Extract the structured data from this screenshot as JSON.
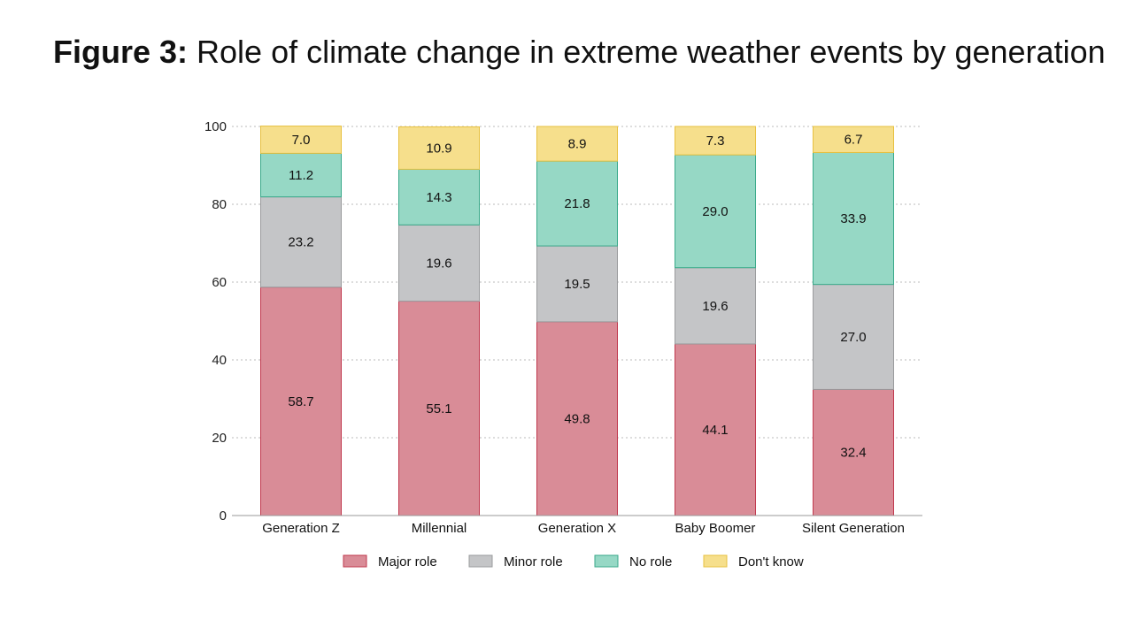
{
  "figure": {
    "label": "Figure 3:",
    "title": "Role of climate change in extreme weather events by generation"
  },
  "chart_data": {
    "type": "bar",
    "stacked": true,
    "title": "Role of climate change in extreme weather events by generation",
    "categories": [
      "Generation Z",
      "Millennial",
      "Generation X",
      "Baby Boomer",
      "Silent Generation"
    ],
    "series": [
      {
        "name": "Major role",
        "color": "#d98c97",
        "stroke": "#c0394e",
        "values": [
          58.7,
          55.1,
          49.8,
          44.1,
          32.4
        ]
      },
      {
        "name": "Minor role",
        "color": "#c4c5c7",
        "stroke": "#9a9b9d",
        "values": [
          23.2,
          19.6,
          19.5,
          19.6,
          27.0
        ]
      },
      {
        "name": "No role",
        "color": "#96d8c5",
        "stroke": "#3aa98a",
        "values": [
          11.2,
          14.3,
          21.8,
          29.0,
          33.9
        ]
      },
      {
        "name": "Don't know",
        "color": "#f6df8c",
        "stroke": "#e7c040",
        "values": [
          7.0,
          10.9,
          8.9,
          7.3,
          6.7
        ]
      }
    ],
    "yticks": [
      0,
      20,
      40,
      60,
      80,
      100
    ],
    "ylim": [
      0,
      100
    ],
    "xlabel": "",
    "ylabel": "",
    "grid": true,
    "legend": "bottom"
  }
}
